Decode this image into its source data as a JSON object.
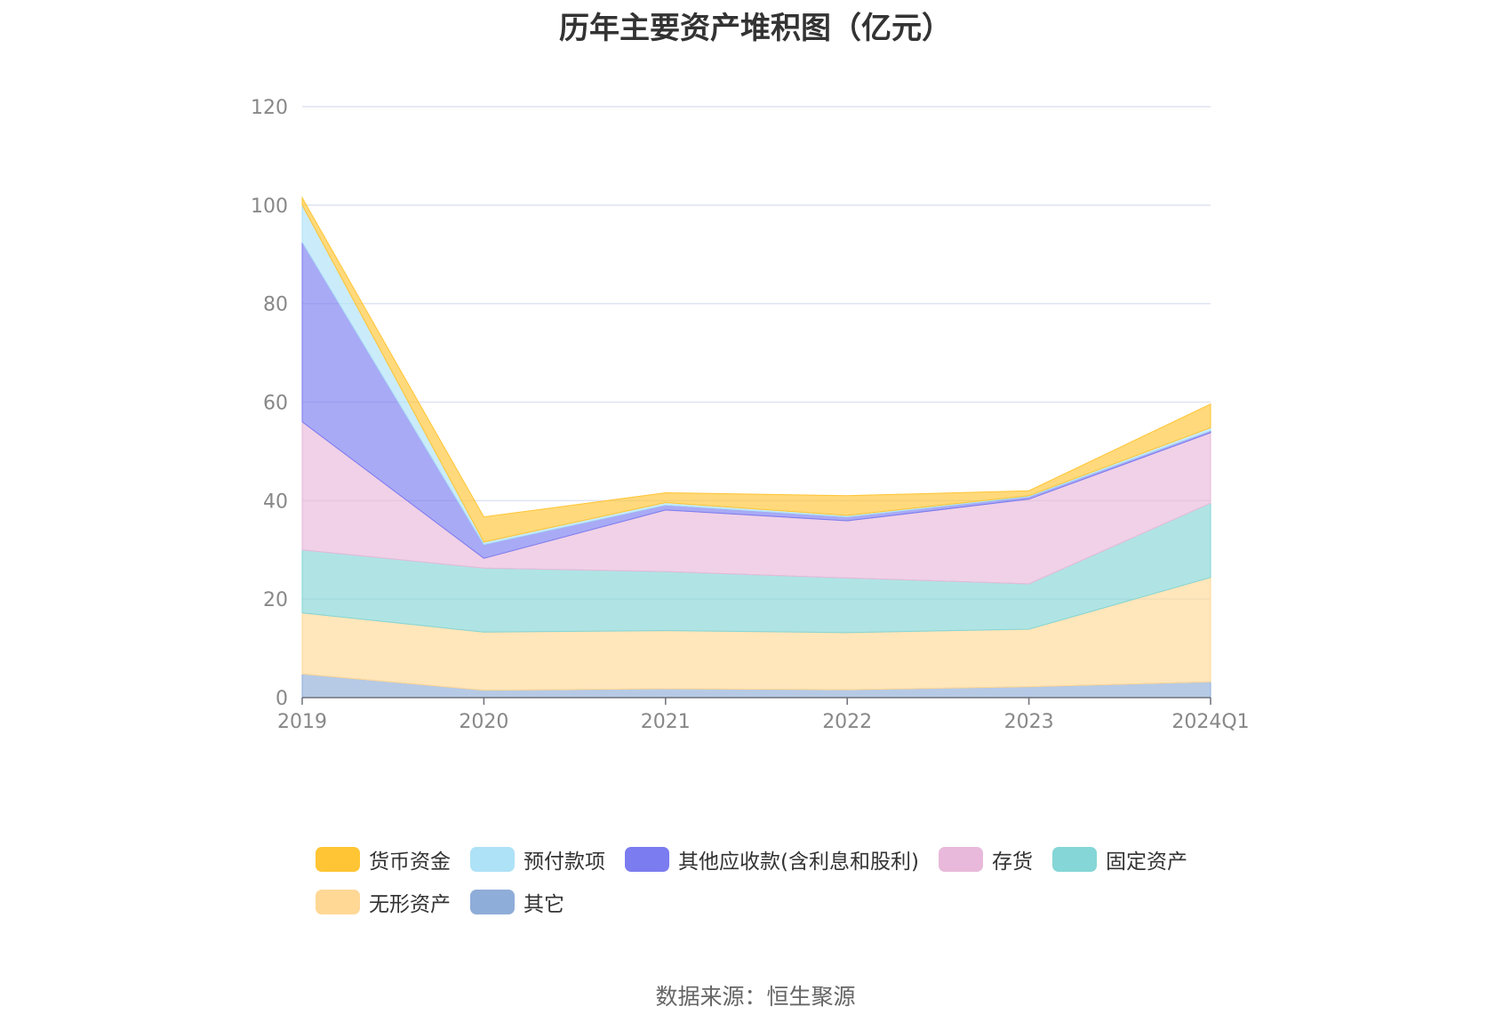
{
  "chart_data": {
    "type": "area",
    "stacked": true,
    "title": "历年主要资产堆积图（亿元）",
    "x": [
      "2019",
      "2020",
      "2021",
      "2022",
      "2023",
      "2024Q1"
    ],
    "ylim": [
      0,
      120
    ],
    "yticks": [
      0,
      20,
      40,
      60,
      80,
      100,
      120
    ],
    "grid": true,
    "legend_position": "bottom",
    "series": [
      {
        "name": "其它",
        "color": "#8fadd9",
        "values": [
          4.8,
          1.5,
          1.8,
          1.6,
          2.2,
          3.2
        ]
      },
      {
        "name": "无形资产",
        "color": "#ffd896",
        "values": [
          12.4,
          11.8,
          11.8,
          11.6,
          11.7,
          21.2
        ]
      },
      {
        "name": "固定资产",
        "color": "#85d6d6",
        "values": [
          12.8,
          13.0,
          12.0,
          11.1,
          9.2,
          15.1
        ]
      },
      {
        "name": "存货",
        "color": "#e8b9da",
        "values": [
          26.0,
          2.0,
          12.5,
          11.6,
          17.2,
          14.3
        ]
      },
      {
        "name": "其他应收款(含利息和股利)",
        "color": "#7b7cf0",
        "values": [
          36.5,
          2.8,
          1.0,
          0.8,
          0.5,
          0.4
        ]
      },
      {
        "name": "预付款项",
        "color": "#aee2f7",
        "values": [
          7.5,
          0.5,
          0.5,
          0.3,
          0.2,
          0.6
        ]
      },
      {
        "name": "货币资金",
        "color": "#ffc534",
        "values": [
          1.5,
          5.1,
          2.0,
          4.0,
          1.0,
          4.8
        ]
      }
    ],
    "legend_order": [
      "货币资金",
      "预付款项",
      "其他应收款(含利息和股利)",
      "存货",
      "固定资产",
      "无形资产",
      "其它"
    ]
  },
  "source": "数据来源：恒生聚源"
}
